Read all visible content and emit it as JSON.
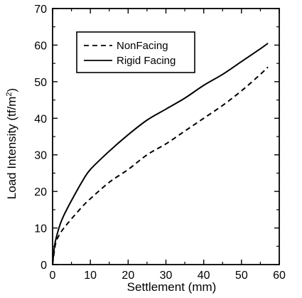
{
  "chart_data": {
    "type": "line",
    "title": "",
    "xlabel": "Settlement (mm)",
    "ylabel": "Load Intensity (tf/m",
    "ylabel_superscript": "2",
    "ylabel_suffix": ")",
    "xlim": [
      0,
      60
    ],
    "ylim": [
      0,
      70
    ],
    "xticks": [
      0,
      10,
      20,
      30,
      40,
      50,
      60
    ],
    "yticks": [
      0,
      10,
      20,
      30,
      40,
      50,
      60,
      70
    ],
    "grid": false,
    "legend_position": "top-left",
    "series": [
      {
        "name": "NonFacing",
        "style": "dashed",
        "color": "#000000",
        "x": [
          0,
          0.5,
          1,
          2,
          3,
          5,
          8,
          10,
          15,
          20,
          25,
          30,
          35,
          40,
          45,
          50,
          55,
          57
        ],
        "y": [
          0,
          4,
          6.5,
          8.5,
          10,
          12.5,
          16,
          18,
          22.5,
          26,
          30,
          33,
          36.5,
          40,
          43.5,
          47.5,
          52,
          54
        ]
      },
      {
        "name": "Rigid Facing",
        "style": "solid",
        "color": "#000000",
        "x": [
          0,
          0.5,
          1,
          2,
          3,
          5,
          8,
          10,
          15,
          20,
          25,
          30,
          35,
          40,
          45,
          50,
          55,
          57
        ],
        "y": [
          0,
          5,
          7.5,
          11,
          13.5,
          17.5,
          23,
          26,
          31,
          35.5,
          39.5,
          42.5,
          45.5,
          49,
          52,
          55.5,
          59,
          60.5
        ]
      }
    ]
  }
}
